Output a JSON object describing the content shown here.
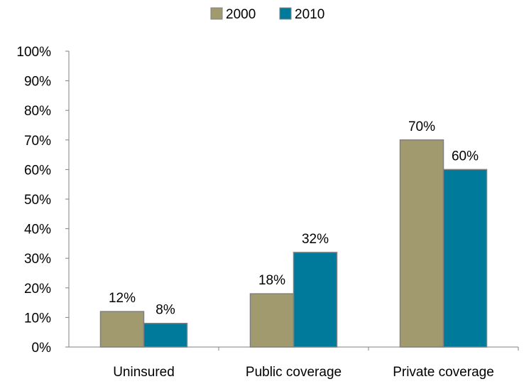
{
  "chart_data": {
    "type": "bar",
    "categories": [
      "Uninsured",
      "Public coverage",
      "Private coverage"
    ],
    "series": [
      {
        "name": "2000",
        "values": [
          12,
          18,
          70
        ],
        "labels": [
          "12%",
          "18%",
          "70%"
        ],
        "color": "#A09A6E"
      },
      {
        "name": "2010",
        "values": [
          8,
          32,
          60
        ],
        "labels": [
          "8%",
          "32%",
          "60%"
        ],
        "color": "#007A9A"
      }
    ],
    "ylim": [
      0,
      100
    ],
    "yticks": [
      "0%",
      "10%",
      "20%",
      "30%",
      "40%",
      "50%",
      "60%",
      "70%",
      "80%",
      "90%",
      "100%"
    ],
    "grid": false,
    "legend_position": "top-center",
    "bar_edge_color": "#808080",
    "axis_color": "#808080"
  }
}
